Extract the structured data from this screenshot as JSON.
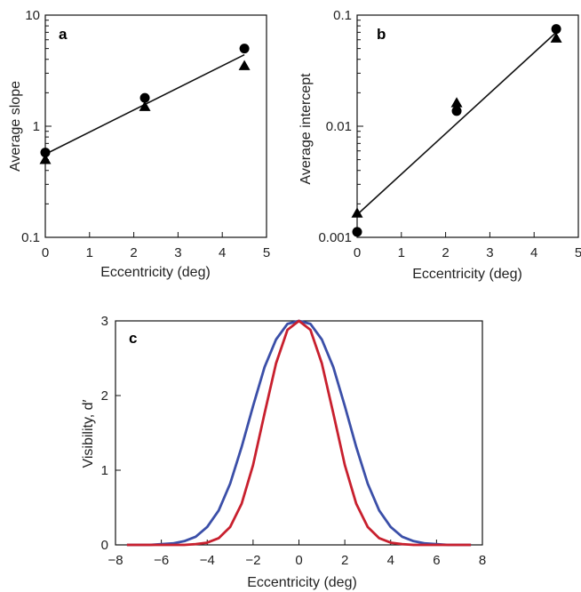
{
  "chart_data": [
    {
      "type": "scatter",
      "panel_label": "a",
      "xlabel": "Eccentricity (deg)",
      "ylabel": "Average slope",
      "xlim": [
        0,
        5
      ],
      "ylim": [
        0.1,
        10
      ],
      "yscale": "log",
      "x_ticks": [
        "0",
        "1",
        "2",
        "3",
        "4",
        "5"
      ],
      "y_ticks": [
        "0.1",
        "1",
        "10"
      ],
      "grid": false,
      "series": [
        {
          "marker": "circle",
          "x": [
            0,
            2.25,
            4.5
          ],
          "y": [
            0.58,
            1.8,
            5.0
          ]
        },
        {
          "marker": "triangle",
          "x": [
            0,
            2.25,
            4.5
          ],
          "y": [
            0.5,
            1.5,
            3.5
          ]
        }
      ],
      "fit_line": {
        "x": [
          0,
          4.5
        ],
        "y": [
          0.56,
          4.4
        ]
      }
    },
    {
      "type": "scatter",
      "panel_label": "b",
      "xlabel": "Eccentricity (deg)",
      "ylabel": "Average intercept",
      "xlim": [
        0,
        5
      ],
      "ylim": [
        0.001,
        0.1
      ],
      "yscale": "log",
      "x_ticks": [
        "0",
        "1",
        "2",
        "3",
        "4",
        "5"
      ],
      "y_ticks": [
        "0.001",
        "0.01",
        "0.1"
      ],
      "grid": false,
      "series": [
        {
          "marker": "circle",
          "x": [
            0,
            2.25,
            4.5
          ],
          "y": [
            0.00112,
            0.0137,
            0.075
          ]
        },
        {
          "marker": "triangle",
          "x": [
            0,
            2.25,
            4.5
          ],
          "y": [
            0.00165,
            0.0162,
            0.062
          ]
        }
      ],
      "fit_line": {
        "x": [
          0,
          4.5
        ],
        "y": [
          0.0016,
          0.07
        ]
      }
    },
    {
      "type": "line",
      "panel_label": "c",
      "xlabel": "Eccentricity (deg)",
      "ylabel": "Visibility, d′",
      "xlim": [
        -8,
        8
      ],
      "ylim": [
        0,
        3
      ],
      "x_ticks": [
        "−8",
        "−6",
        "−4",
        "−2",
        "0",
        "2",
        "4",
        "6",
        "8"
      ],
      "y_ticks": [
        "0",
        "1",
        "2",
        "3"
      ],
      "grid": false,
      "x": [
        -7.5,
        -7,
        -6.5,
        -6,
        -5.5,
        -5,
        -4.5,
        -4,
        -3.5,
        -3,
        -2.5,
        -2,
        -1.5,
        -1,
        -0.5,
        0,
        0.5,
        1,
        1.5,
        2,
        2.5,
        3,
        3.5,
        4,
        4.5,
        5,
        5.5,
        6,
        6.5,
        7,
        7.5
      ],
      "series": [
        {
          "color": "#3b4fa8",
          "values": [
            0.0,
            0.0,
            0.0,
            0.01,
            0.02,
            0.05,
            0.11,
            0.24,
            0.46,
            0.82,
            1.31,
            1.86,
            2.38,
            2.75,
            2.96,
            3.0,
            2.96,
            2.75,
            2.38,
            1.86,
            1.31,
            0.82,
            0.46,
            0.24,
            0.11,
            0.05,
            0.02,
            0.01,
            0.0,
            0.0,
            0.0
          ]
        },
        {
          "color": "#c8202e",
          "values": [
            0.0,
            0.0,
            0.0,
            0.0,
            0.0,
            0.0,
            0.01,
            0.03,
            0.09,
            0.24,
            0.55,
            1.07,
            1.76,
            2.43,
            2.88,
            3.0,
            2.88,
            2.43,
            1.76,
            1.07,
            0.55,
            0.24,
            0.09,
            0.03,
            0.01,
            0.0,
            0.0,
            0.0,
            0.0,
            0.0,
            0.0
          ]
        }
      ]
    }
  ]
}
